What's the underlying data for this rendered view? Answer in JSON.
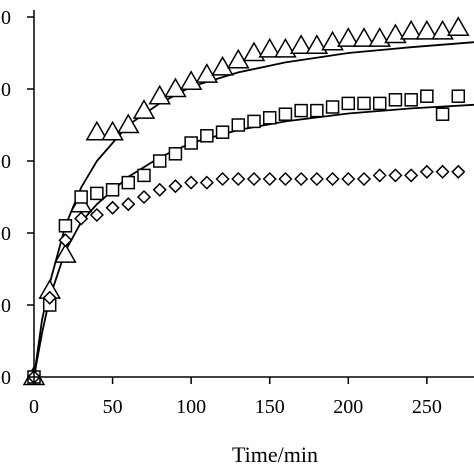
{
  "chart_data": {
    "type": "scatter",
    "title": "",
    "xlabel": "Time/min",
    "ylabel": "",
    "xlim": [
      0,
      280
    ],
    "ylim": [
      0,
      50
    ],
    "x_ticks": [
      "0",
      "50",
      "100",
      "150",
      "200",
      "250"
    ],
    "y_tick_labels": [
      "0",
      "0",
      "0",
      "0",
      "0",
      "0"
    ],
    "grid": false,
    "legend": "none",
    "series": [
      {
        "marker": "triangle",
        "x": [
          0,
          10,
          20,
          30,
          40,
          50,
          60,
          70,
          80,
          90,
          100,
          110,
          120,
          130,
          140,
          150,
          160,
          170,
          180,
          190,
          200,
          210,
          220,
          230,
          240,
          250,
          260,
          270
        ],
        "y": [
          0,
          12,
          17,
          24,
          34,
          34,
          35,
          37,
          39,
          40,
          41,
          42,
          43,
          44,
          45,
          45.5,
          45.5,
          46,
          46,
          46.5,
          47,
          47,
          47,
          47.5,
          48,
          48,
          48,
          48.5
        ]
      },
      {
        "marker": "square",
        "x": [
          0,
          10,
          20,
          30,
          40,
          50,
          60,
          70,
          80,
          90,
          100,
          110,
          120,
          130,
          140,
          150,
          160,
          170,
          180,
          190,
          200,
          210,
          220,
          230,
          240,
          250,
          260,
          270
        ],
        "y": [
          0,
          10,
          21,
          25,
          25.5,
          26,
          27,
          28,
          30,
          31,
          32.5,
          33.5,
          34,
          35,
          35.5,
          36,
          36.5,
          37,
          37,
          37.5,
          38,
          38,
          38,
          38.5,
          38.5,
          39,
          36.5,
          39
        ]
      },
      {
        "marker": "diamond",
        "x": [
          0,
          10,
          20,
          30,
          40,
          50,
          60,
          70,
          80,
          90,
          100,
          110,
          120,
          130,
          140,
          150,
          160,
          170,
          180,
          190,
          200,
          210,
          220,
          230,
          240,
          250,
          260,
          270
        ],
        "y": [
          0,
          11,
          19,
          22,
          22.5,
          23.5,
          24,
          25,
          26,
          26.5,
          27,
          27,
          27.5,
          27.5,
          27.5,
          27.5,
          27.5,
          27.5,
          27.5,
          27.5,
          27.5,
          27.5,
          28,
          28,
          28,
          28.5,
          28.5,
          28.5
        ]
      }
    ],
    "fit_curves": [
      {
        "for": "triangle",
        "x": [
          0,
          5,
          10,
          20,
          30,
          40,
          60,
          80,
          100,
          130,
          160,
          200,
          240,
          280
        ],
        "y": [
          0,
          7.8,
          13,
          21,
          26.3,
          30,
          35,
          38,
          40.3,
          42.3,
          43.7,
          45,
          45.8,
          46.5
        ]
      },
      {
        "for": "square",
        "x": [
          0,
          5,
          10,
          20,
          30,
          40,
          60,
          80,
          100,
          130,
          160,
          200,
          240,
          280
        ],
        "y": [
          0,
          6,
          11,
          17.5,
          21.5,
          24,
          27.8,
          30.5,
          32.5,
          34.3,
          35.5,
          36.6,
          37.3,
          37.8
        ]
      }
    ]
  }
}
